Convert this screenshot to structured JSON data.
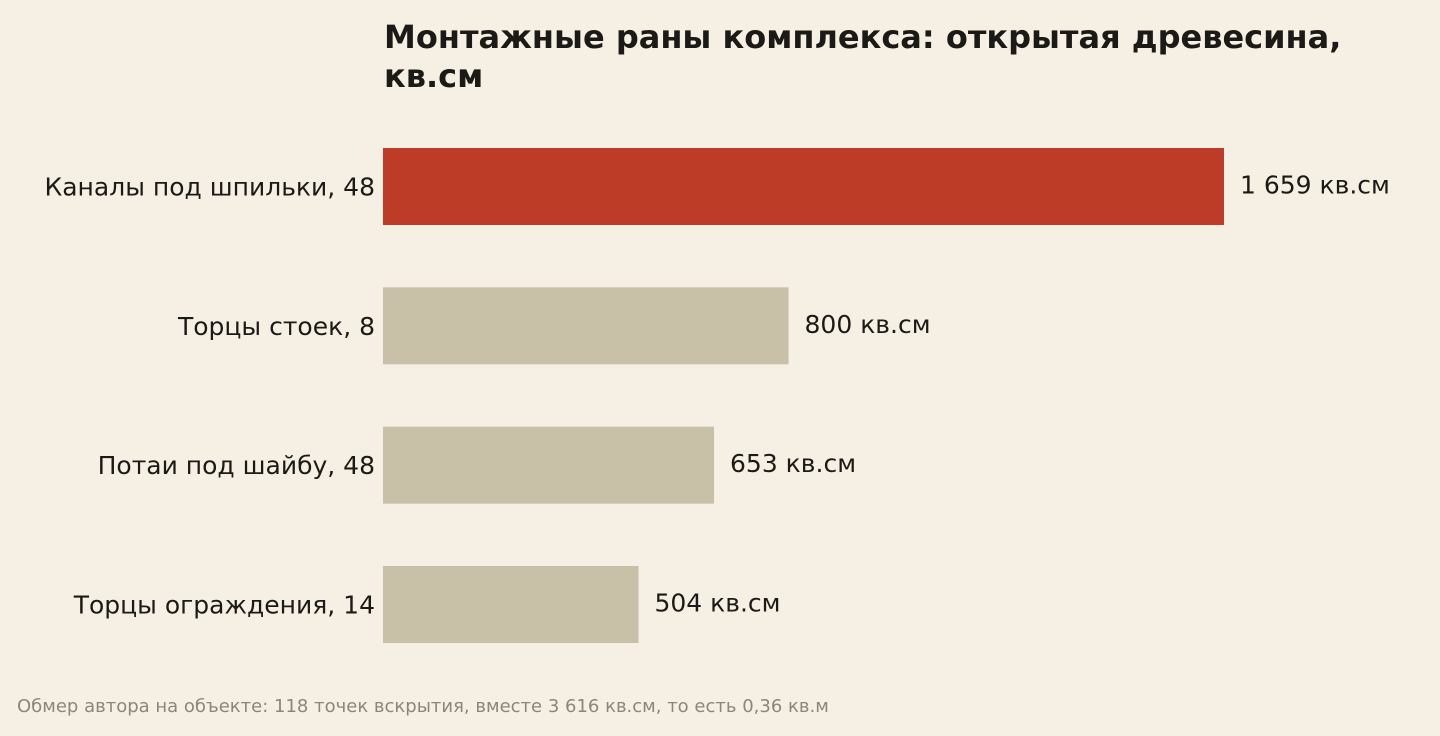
{
  "chart_data": {
    "type": "bar",
    "orientation": "horizontal",
    "title": "Монтажные раны комплекса: открытая древесина, кв.см",
    "categories": [
      "Каналы под шпильки, 48",
      "Торцы стоек, 8",
      "Потаи под шайбу, 48",
      "Торцы ограждения, 14"
    ],
    "values": [
      1659,
      800,
      653,
      504
    ],
    "value_labels": [
      "1 659 кв.см",
      "800 кв.см",
      "653 кв.см",
      "504 кв.см"
    ],
    "unit": "кв.см",
    "xlim": [
      0,
      1659
    ],
    "grid": false,
    "legend": "none",
    "colors": {
      "highlight": "#bc3c27",
      "default": "#c9c0a8",
      "text": "#1c1a16",
      "background": "#f6f0e4"
    }
  },
  "footnote": "Обмер автора на объекте: 118 точек вскрытия, вместе 3 616 кв.см, то есть 0,36 кв.м"
}
